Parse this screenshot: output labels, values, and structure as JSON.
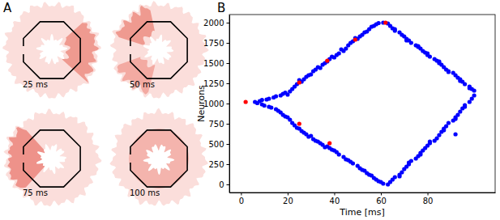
{
  "chart_data": [
    {
      "type": "snapshots",
      "panel_label": "A",
      "snapshots": [
        {
          "label": "25 ms"
        },
        {
          "label": "50 ms"
        },
        {
          "label": "75 ms"
        },
        {
          "label": "100 ms"
        }
      ]
    },
    {
      "type": "scatter",
      "panel_label": "B",
      "x_label": "Time [ms]",
      "y_label": "Neurons",
      "xlim": [
        -5,
        109
      ],
      "ylim": [
        -100,
        2100
      ],
      "xticks": [
        0,
        20,
        40,
        60,
        80
      ],
      "yticks": [
        0,
        250,
        500,
        750,
        1000,
        1250,
        1500,
        1750,
        2000
      ],
      "grid": false,
      "series": [
        {
          "color": "#0000ff",
          "marker": "circle",
          "x": [
            6,
            8,
            9,
            11,
            12,
            14,
            15,
            17,
            18,
            19,
            21,
            22,
            23,
            24,
            26,
            27,
            28,
            29,
            31,
            32,
            33,
            35,
            36,
            37,
            38,
            40,
            41,
            42,
            44,
            45,
            46,
            47,
            48,
            50,
            51,
            52,
            54,
            55,
            56,
            58,
            59,
            61,
            63,
            20,
            25,
            30,
            34,
            39,
            43,
            49,
            53,
            57,
            7,
            9,
            10,
            12,
            13,
            15,
            16,
            17,
            18,
            19,
            21,
            22,
            23,
            24,
            26,
            27,
            28,
            30,
            31,
            32,
            34,
            35,
            37,
            38,
            39,
            41,
            42,
            44,
            45,
            47,
            48,
            50,
            51,
            53,
            54,
            56,
            57,
            58,
            60,
            61,
            63,
            20,
            25,
            29,
            33,
            36,
            40,
            46,
            52,
            55,
            59,
            64,
            65,
            66,
            68,
            69,
            70,
            71,
            72,
            73,
            75,
            76,
            77,
            78,
            79,
            80,
            81,
            83,
            84,
            85,
            86,
            87,
            88,
            89,
            91,
            92,
            93,
            94,
            95,
            96,
            98,
            99,
            100,
            66,
            71,
            76,
            80,
            85,
            89,
            94,
            98,
            64,
            65,
            66,
            68,
            69,
            70,
            71,
            72,
            73,
            75,
            76,
            77,
            78,
            79,
            80,
            81,
            83,
            84,
            85,
            86,
            87,
            88,
            89,
            91,
            92,
            93,
            94,
            95,
            96,
            98,
            99,
            100,
            68,
            72,
            77,
            81,
            87,
            92,
            96,
            92
          ],
          "values": [
            1020,
            1030,
            1045,
            1050,
            1060,
            1075,
            1090,
            1100,
            1120,
            1135,
            1150,
            1180,
            1210,
            1240,
            1270,
            1300,
            1330,
            1350,
            1400,
            1420,
            1450,
            1480,
            1500,
            1520,
            1550,
            1570,
            1600,
            1620,
            1650,
            1680,
            1720,
            1750,
            1770,
            1800,
            1830,
            1850,
            1890,
            1920,
            1950,
            1980,
            1995,
            2000,
            1990,
            1110,
            1290,
            1360,
            1440,
            1580,
            1670,
            1810,
            1880,
            1960,
            1005,
            990,
            975,
            960,
            950,
            930,
            910,
            890,
            860,
            840,
            800,
            760,
            730,
            700,
            660,
            640,
            620,
            600,
            560,
            540,
            510,
            490,
            470,
            450,
            430,
            400,
            370,
            340,
            310,
            280,
            260,
            230,
            200,
            170,
            140,
            110,
            80,
            60,
            30,
            10,
            0,
            830,
            690,
            590,
            530,
            460,
            420,
            300,
            180,
            120,
            40,
            1960,
            1930,
            1900,
            1880,
            1850,
            1830,
            1800,
            1780,
            1750,
            1720,
            1700,
            1680,
            1650,
            1630,
            1600,
            1580,
            1550,
            1530,
            1500,
            1480,
            1450,
            1420,
            1400,
            1380,
            1350,
            1320,
            1300,
            1270,
            1240,
            1210,
            1180,
            1160,
            1920,
            1780,
            1710,
            1620,
            1520,
            1390,
            1280,
            1190,
            30,
            60,
            90,
            120,
            150,
            190,
            220,
            250,
            290,
            320,
            350,
            390,
            420,
            450,
            480,
            510,
            540,
            570,
            610,
            650,
            690,
            720,
            760,
            790,
            830,
            860,
            900,
            940,
            980,
            1020,
            1060,
            1100,
            100,
            270,
            370,
            530,
            670,
            810,
            960,
            620
          ]
        },
        {
          "color": "#ff0000",
          "marker": "circle",
          "x": [
            2,
            25,
            37,
            49,
            62,
            25,
            38
          ],
          "values": [
            1020,
            1260,
            1530,
            1790,
            2000,
            750,
            510
          ]
        }
      ]
    }
  ]
}
